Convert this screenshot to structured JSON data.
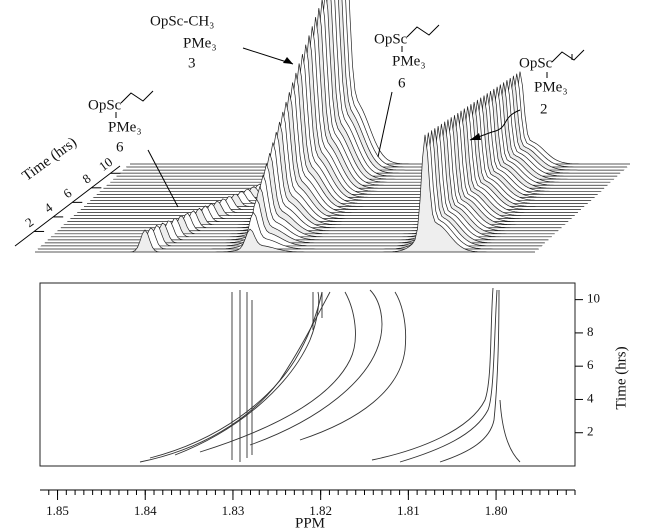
{
  "chart_data": [
    {
      "type": "stack3d",
      "ylabel": "Time (hrs)",
      "ylim": [
        0,
        11
      ],
      "yticks": [
        2,
        4,
        6,
        8,
        10
      ],
      "annotations": [
        {
          "lines": [
            "OpSc-CH₃",
            "PMe₃",
            "3"
          ]
        },
        {
          "lines": [
            "OpSc",
            "PMe₃",
            "6"
          ]
        },
        {
          "lines": [
            "OpSc",
            "PMe₃",
            "6"
          ]
        },
        {
          "lines": [
            "OpSc",
            "PMe₃",
            "2"
          ]
        }
      ]
    },
    {
      "type": "contour",
      "xlabel": "PPM",
      "ylabel": "Time (hrs)",
      "xlim": [
        1.852,
        1.791
      ],
      "xticks": [
        1.85,
        1.84,
        1.83,
        1.82,
        1.81,
        {
          "value": 1.8,
          "label": "1.80"
        }
      ],
      "ylim": [
        0,
        11
      ],
      "yticks": [
        2,
        4,
        6,
        8,
        10
      ]
    }
  ]
}
